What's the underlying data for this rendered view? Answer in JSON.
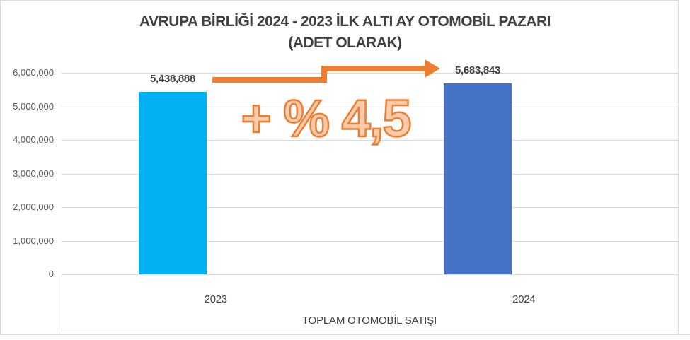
{
  "chart_data": {
    "type": "bar",
    "title": "AVRUPA BİRLİĞİ 2024 - 2023 İLK ALTI AY OTOMOBİL PAZARI",
    "subtitle": "(ADET OLARAK)",
    "categories": [
      "2023",
      "2024"
    ],
    "values": [
      5438888,
      5683843
    ],
    "data_labels": [
      "5,438,888",
      "5,683,843"
    ],
    "xlabel": "TOPLAM OTOMOBİL SATIŞI",
    "ylabel": "",
    "ylim": [
      0,
      6000000
    ],
    "ytick_interval": 1000000,
    "ytick_labels": [
      "0",
      "1,000,000",
      "2,000,000",
      "3,000,000",
      "4,000,000",
      "5,000,000",
      "6,000,000"
    ],
    "grid": true,
    "legend": false,
    "bar_colors": [
      "#00B0F0",
      "#4472C4"
    ]
  },
  "annotation": {
    "text": "+ % 4,5",
    "fill_color": "#F8CBAD",
    "stroke_color": "#ED7D31"
  },
  "arrow": {
    "meaning": "increase-from-2023-to-2024",
    "color": "#ED7D31"
  },
  "frame": {
    "border_color": "#D9D9D9"
  }
}
